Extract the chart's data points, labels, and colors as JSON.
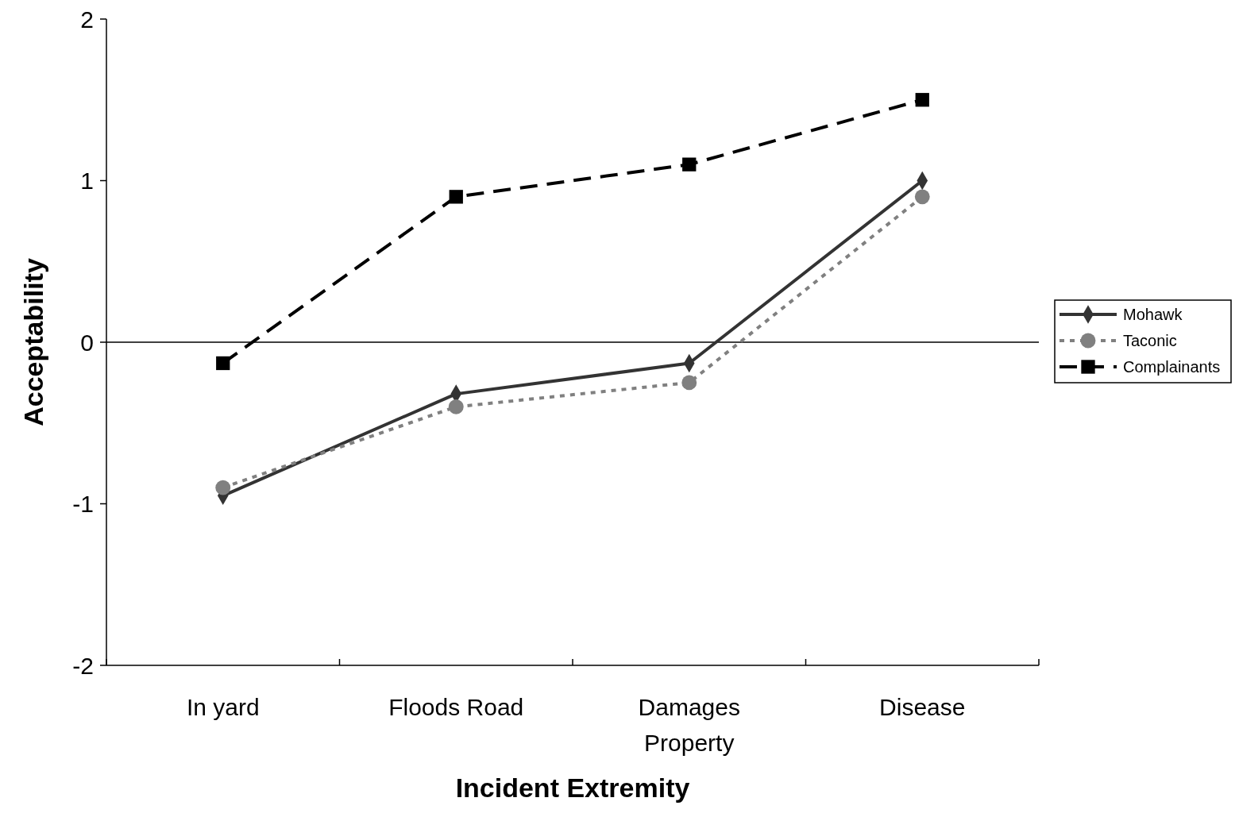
{
  "chart_data": {
    "type": "line",
    "xlabel": "Incident Extremity",
    "ylabel": "Acceptability",
    "categories": [
      "In yard",
      "Floods Road",
      "Damages\nProperty",
      "Disease"
    ],
    "series": [
      {
        "name": "Mohawk",
        "color": "#333333",
        "marker": "diamond",
        "line_style": "solid",
        "values": [
          -0.95,
          -0.32,
          -0.13,
          1.0
        ]
      },
      {
        "name": "Taconic",
        "color": "#808080",
        "marker": "circle",
        "line_style": "dotted",
        "values": [
          -0.9,
          -0.4,
          -0.25,
          0.9
        ]
      },
      {
        "name": "Complainants",
        "color": "#000000",
        "marker": "square",
        "line_style": "dashed",
        "values": [
          -0.13,
          0.9,
          1.1,
          1.5
        ]
      }
    ],
    "ylim": [
      -2,
      2
    ],
    "yticks": [
      -2,
      -1,
      0,
      1,
      2
    ],
    "ref_lines": [
      {
        "axis": "y",
        "value": 0,
        "color": "#000000"
      }
    ],
    "grid": false,
    "legend": "right"
  }
}
